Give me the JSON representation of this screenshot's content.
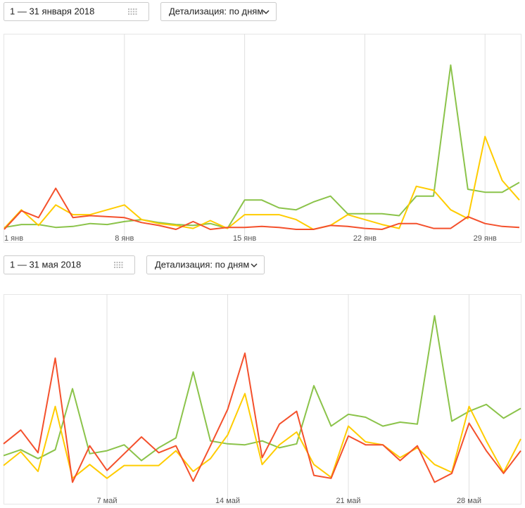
{
  "chart_data": [
    {
      "type": "line",
      "date_range": "1 — 31 января 2018",
      "detail": "Детализация: по дням",
      "categories": [
        "1 янв",
        null,
        null,
        null,
        null,
        null,
        null,
        "8 янв",
        null,
        null,
        null,
        null,
        null,
        null,
        "15 янв",
        null,
        null,
        null,
        null,
        null,
        null,
        "22 янв",
        null,
        null,
        null,
        null,
        null,
        null,
        "29 янв",
        null,
        null
      ],
      "ylim": [
        0,
        100
      ],
      "grid": true,
      "series": [
        {
          "color": "#8bc34a",
          "values": [
            1,
            2.5,
            2.5,
            1,
            1.5,
            3,
            2.5,
            4,
            5,
            3.5,
            2.5,
            2,
            3,
            0.5,
            15,
            15,
            11,
            10,
            14,
            17,
            8,
            8,
            8,
            7,
            17,
            17,
            84,
            20.5,
            19,
            19,
            24
          ]
        },
        {
          "color": "#ffcc00",
          "values": [
            0.5,
            10,
            2,
            12.5,
            7.5,
            7.5,
            10,
            12.5,
            5,
            3,
            2,
            0.5,
            4.5,
            0.5,
            7.5,
            7.5,
            7.5,
            5,
            0,
            2,
            7.5,
            5,
            2.5,
            0.5,
            22,
            20,
            10,
            5.5,
            47.5,
            25,
            15
          ]
        },
        {
          "color": "#f4502c",
          "values": [
            0,
            9.5,
            6,
            21,
            6,
            7,
            6.5,
            6,
            3.5,
            2,
            0,
            4,
            0,
            1,
            1,
            1.5,
            1,
            0,
            0,
            2,
            1.5,
            0.5,
            0,
            3,
            3,
            0.5,
            0.5,
            6.5,
            3,
            1.5,
            1
          ]
        }
      ]
    },
    {
      "type": "line",
      "date_range": "1 — 31 мая 2018",
      "detail": "Детализация: по дням",
      "categories": [
        null,
        null,
        null,
        null,
        null,
        null,
        "7 май",
        null,
        null,
        null,
        null,
        null,
        null,
        "14 май",
        null,
        null,
        null,
        null,
        null,
        null,
        "21 май",
        null,
        null,
        null,
        null,
        null,
        null,
        "28 май",
        null,
        null,
        null
      ],
      "ylim": [
        0,
        100
      ],
      "grid": true,
      "series": [
        {
          "color": "#8bc34a",
          "values": [
            18,
            21,
            16.5,
            21,
            52,
            19,
            20.5,
            23.5,
            15.5,
            22,
            27,
            60.5,
            25.5,
            24,
            23.5,
            25.5,
            22,
            24,
            53.5,
            33,
            39,
            37.5,
            33,
            35,
            34,
            89,
            35.5,
            40.5,
            44,
            37,
            42
          ]
        },
        {
          "color": "#ffcc00",
          "values": [
            13,
            20,
            10,
            43,
            6.5,
            13.5,
            6.5,
            13,
            13,
            13,
            20.5,
            10,
            16.5,
            28.5,
            49.5,
            13.5,
            23.5,
            30,
            13.5,
            7,
            33,
            25,
            23.5,
            17,
            22,
            13.5,
            9.5,
            43,
            25.5,
            9.5,
            26.5
          ]
        },
        {
          "color": "#f4502c",
          "values": [
            24,
            31,
            19.5,
            67.5,
            4.5,
            23,
            10.5,
            19,
            27.5,
            19.5,
            23,
            5,
            23,
            41.5,
            70,
            17,
            34,
            40.5,
            8,
            6.5,
            28,
            23.5,
            23.5,
            15.5,
            23,
            4.5,
            9,
            34.5,
            20.5,
            9,
            20.5
          ]
        }
      ]
    }
  ]
}
